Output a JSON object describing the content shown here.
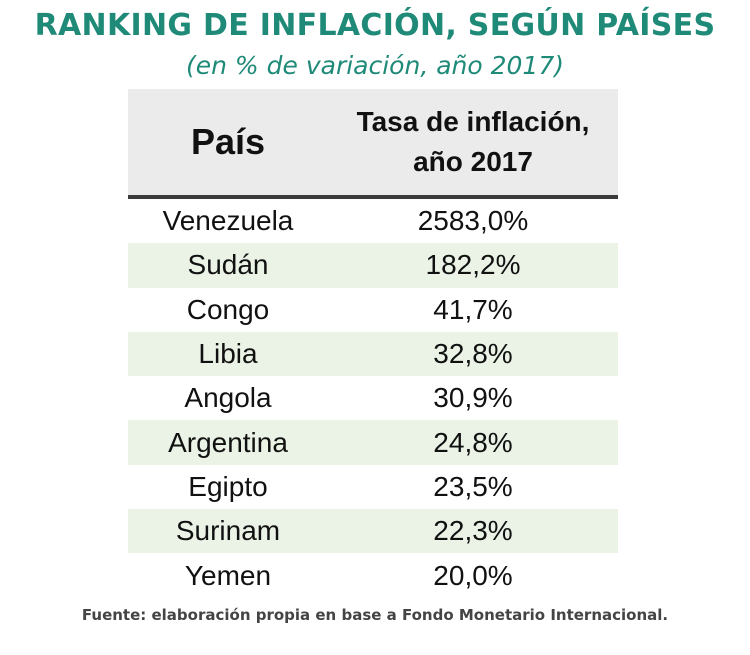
{
  "title": "RANKING DE INFLACIÓN, SEGÚN PAÍSES",
  "subtitle": "(en % de variación, año 2017)",
  "table": {
    "headers": {
      "country": "País",
      "rate_line1": "Tasa de inflación,",
      "rate_line2": "año 2017"
    },
    "rows": [
      {
        "country": "Venezuela",
        "rate": "2583,0%"
      },
      {
        "country": "Sudán",
        "rate": "182,2%"
      },
      {
        "country": "Congo",
        "rate": "41,7%"
      },
      {
        "country": "Libia",
        "rate": "32,8%"
      },
      {
        "country": "Angola",
        "rate": "30,9%"
      },
      {
        "country": "Argentina",
        "rate": "24,8%"
      },
      {
        "country": "Egipto",
        "rate": "23,5%"
      },
      {
        "country": "Surinam",
        "rate": "22,3%"
      },
      {
        "country": "Yemen",
        "rate": "20,0%"
      }
    ]
  },
  "source": "Fuente: elaboración propia en base a Fondo Monetario Internacional.",
  "colors": {
    "title": "#1f8a78",
    "header_bg": "#ebebeb",
    "row_alt_bg": "#eaf3e6",
    "header_rule": "#3a3a3a"
  },
  "chart_data": {
    "type": "table",
    "title": "RANKING DE INFLACIÓN, SEGÚN PAÍSES",
    "subtitle": "(en % de variación, año 2017)",
    "columns": [
      "País",
      "Tasa de inflación, año 2017"
    ],
    "categories": [
      "Venezuela",
      "Sudán",
      "Congo",
      "Libia",
      "Angola",
      "Argentina",
      "Egipto",
      "Surinam",
      "Yemen"
    ],
    "values": [
      2583.0,
      182.2,
      41.7,
      32.8,
      30.9,
      24.8,
      23.5,
      22.3,
      20.0
    ]
  }
}
